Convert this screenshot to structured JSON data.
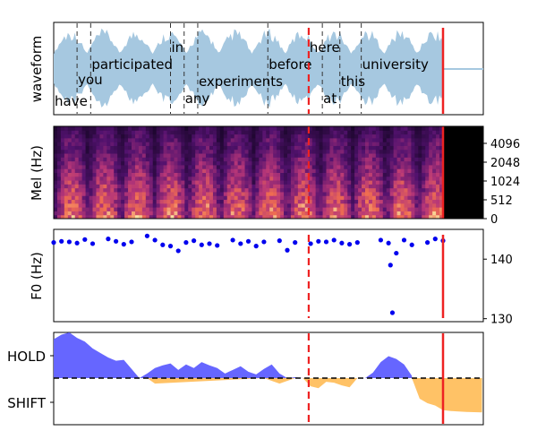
{
  "colors": {
    "waveform": "#a6c8e0",
    "word_boundary": "#333333",
    "current_marker": "#ee2222",
    "f0_points": "#0000ee",
    "hold_fill": "#6666ff",
    "shift_fill": "#ffc266",
    "zero_line": "#000000",
    "axes": "#000000"
  },
  "chart_data": [
    {
      "type": "area",
      "panel": "waveform",
      "ylabel": "waveform",
      "words": [
        {
          "text": "have",
          "t": 0.0
        },
        {
          "text": "you",
          "t": 0.06
        },
        {
          "text": "participated",
          "t": 0.095
        },
        {
          "text": "in",
          "t": 0.3
        },
        {
          "text": "any",
          "t": 0.335
        },
        {
          "text": "experiments",
          "t": 0.37
        },
        {
          "text": "before",
          "t": 0.55
        },
        {
          "text": "here",
          "t": 0.655
        },
        {
          "text": "at",
          "t": 0.69
        },
        {
          "text": "this",
          "t": 0.735
        },
        {
          "text": "university",
          "t": 0.79
        }
      ],
      "word_boundaries": [
        0.06,
        0.095,
        0.3,
        0.335,
        0.37,
        0.55,
        0.69,
        0.735,
        0.79
      ],
      "speech_end": 1.0,
      "dashed_marker": 0.655,
      "current_marker": 1.0
    },
    {
      "type": "heatmap",
      "panel": "spectrogram",
      "ylabel": "Mel (Hz)",
      "yticks": [
        "0",
        "512",
        "1024",
        "2048",
        "4096"
      ]
    },
    {
      "type": "scatter",
      "panel": "f0",
      "ylabel": "F0 (Hz)",
      "yticks": [
        "130",
        "140"
      ],
      "ylim": [
        129.5,
        145
      ],
      "x": [
        0.0,
        0.02,
        0.04,
        0.06,
        0.08,
        0.1,
        0.14,
        0.16,
        0.18,
        0.2,
        0.24,
        0.26,
        0.28,
        0.3,
        0.32,
        0.34,
        0.36,
        0.38,
        0.4,
        0.42,
        0.46,
        0.48,
        0.5,
        0.52,
        0.54,
        0.58,
        0.6,
        0.62,
        0.66,
        0.68,
        0.7,
        0.72,
        0.74,
        0.76,
        0.78,
        0.84,
        0.86,
        0.88,
        0.9,
        0.92,
        0.96,
        0.98,
        1.0
      ],
      "values": [
        142.8,
        143.0,
        142.9,
        142.7,
        143.3,
        142.6,
        143.4,
        143.0,
        142.5,
        142.9,
        143.9,
        143.2,
        142.4,
        142.2,
        141.4,
        142.8,
        143.1,
        142.4,
        142.6,
        142.3,
        143.2,
        142.6,
        143.0,
        142.2,
        142.9,
        143.1,
        141.5,
        142.8,
        142.6,
        143.0,
        142.9,
        143.2,
        142.7,
        142.5,
        142.8,
        143.2,
        142.7,
        141.0,
        143.2,
        142.4,
        142.8,
        143.4,
        143.1
      ],
      "outliers": [
        {
          "x": 0.865,
          "y": 139.0
        },
        {
          "x": 0.87,
          "y": 131.0
        }
      ],
      "dashed_marker": 0.655,
      "current_marker": 1.0
    },
    {
      "type": "area",
      "panel": "turn-prediction",
      "yticks": [
        "HOLD",
        "SHIFT"
      ],
      "series": [
        {
          "name": "HOLD",
          "x": [
            0.0,
            0.02,
            0.04,
            0.06,
            0.08,
            0.1,
            0.12,
            0.14,
            0.16,
            0.18,
            0.2,
            0.22,
            0.24,
            0.26,
            0.28,
            0.3,
            0.32,
            0.34,
            0.36,
            0.38,
            0.4,
            0.42,
            0.44,
            0.46,
            0.48,
            0.5,
            0.52,
            0.54,
            0.56,
            0.58,
            0.6,
            0.62,
            0.64,
            0.66,
            0.68,
            0.7,
            0.72,
            0.74,
            0.76,
            0.78,
            0.8,
            0.82,
            0.84,
            0.86,
            0.88,
            0.9,
            0.92
          ],
          "values": [
            0.85,
            0.95,
            1.0,
            0.88,
            0.8,
            0.65,
            0.55,
            0.45,
            0.38,
            0.4,
            0.2,
            0.0,
            0.1,
            0.22,
            0.28,
            0.32,
            0.18,
            0.3,
            0.22,
            0.35,
            0.28,
            0.22,
            0.1,
            0.18,
            0.26,
            0.14,
            0.08,
            0.2,
            0.3,
            0.1,
            0.0,
            0.02,
            0.0,
            0.0,
            0.0,
            0.0,
            0.0,
            0.0,
            0.0,
            0.0,
            0.0,
            0.12,
            0.35,
            0.48,
            0.42,
            0.3,
            0.05
          ]
        },
        {
          "name": "SHIFT",
          "x": [
            0.24,
            0.26,
            0.54,
            0.58,
            0.62,
            0.64,
            0.66,
            0.68,
            0.7,
            0.72,
            0.74,
            0.76,
            0.78,
            0.84,
            0.86,
            0.88,
            0.9,
            0.92,
            0.94,
            0.96,
            0.98,
            1.0,
            1.02,
            1.06,
            1.1
          ],
          "values": [
            0.0,
            0.12,
            0.0,
            0.12,
            0.0,
            0.0,
            0.18,
            0.22,
            0.08,
            0.1,
            0.16,
            0.2,
            0.0,
            0.0,
            0.0,
            0.0,
            0.0,
            0.0,
            0.45,
            0.55,
            0.6,
            0.7,
            0.72,
            0.74,
            0.75
          ]
        }
      ],
      "dashed_marker": 0.655,
      "current_marker": 1.0
    }
  ]
}
